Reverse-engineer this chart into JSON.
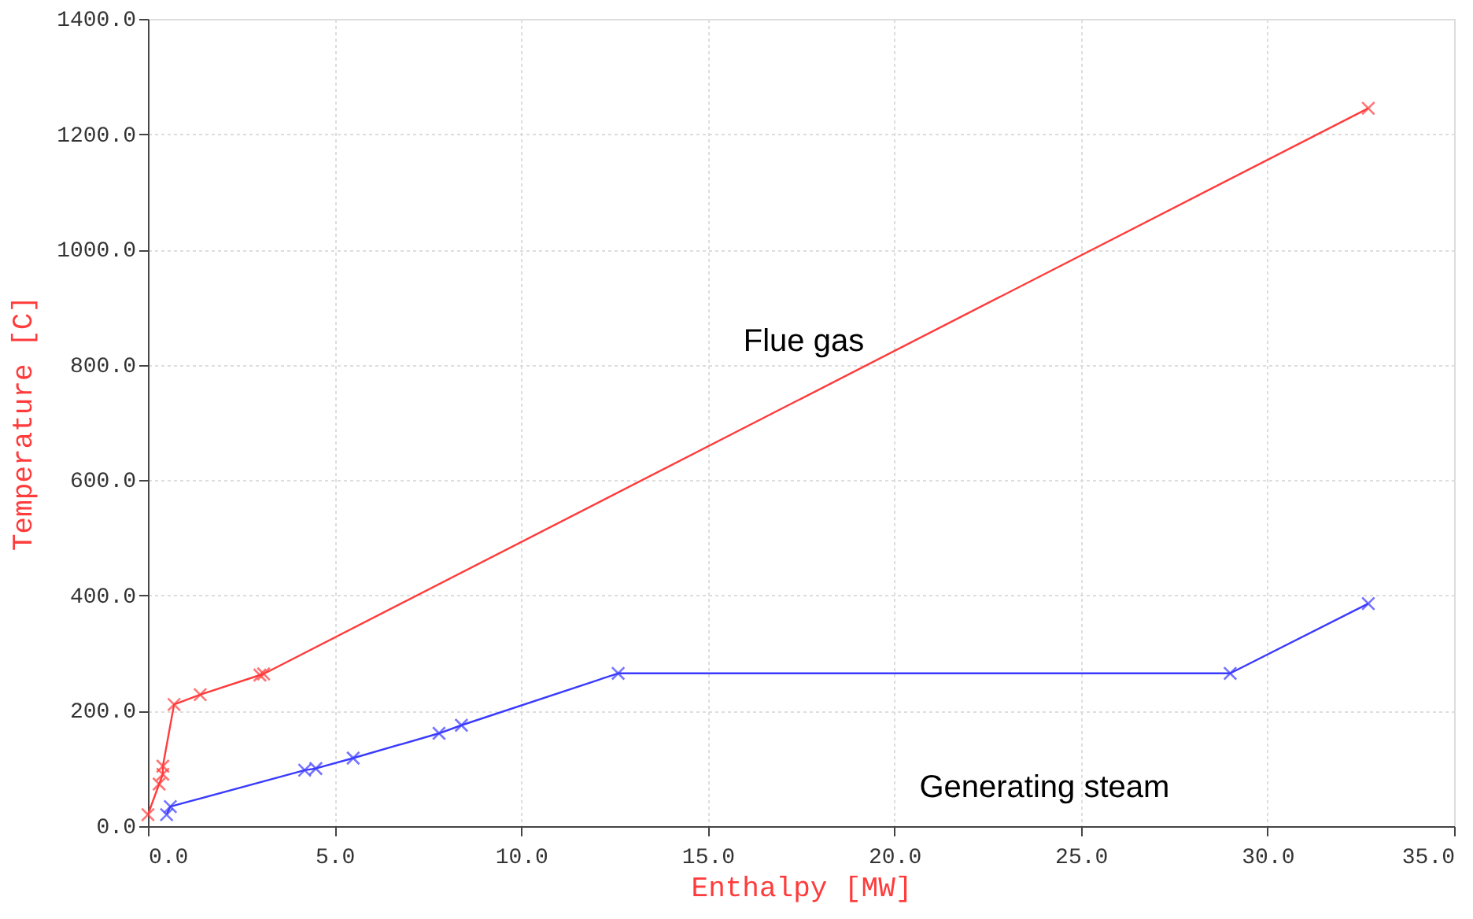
{
  "chart_data": {
    "type": "line",
    "xlabel": "Enthalpy [MW]",
    "ylabel": "Temperature [C]",
    "series": [
      {
        "color": "#ff3b3b",
        "x": [
          0.0,
          0.3,
          0.4,
          0.4,
          0.7,
          1.4,
          3.0,
          3.1,
          32.7
        ],
        "values": [
          20,
          73,
          90,
          104,
          211,
          228,
          262,
          264,
          1245
        ]
      },
      {
        "color": "#3a3aff",
        "x": [
          0.5,
          0.6,
          4.2,
          4.5,
          5.5,
          7.8,
          8.4,
          12.6,
          29.0,
          32.7
        ],
        "values": [
          20,
          34,
          97,
          100,
          118,
          161,
          175,
          265,
          265,
          386
        ]
      }
    ],
    "xlim": [
      0,
      35
    ],
    "ylim": [
      0,
      1400
    ],
    "xticks": [
      {
        "value": 0,
        "label": "0.0"
      },
      {
        "value": 5,
        "label": "5.0"
      },
      {
        "value": 10,
        "label": "10.0"
      },
      {
        "value": 15,
        "label": "15.0"
      },
      {
        "value": 20,
        "label": "20.0"
      },
      {
        "value": 25,
        "label": "25.0"
      },
      {
        "value": 30,
        "label": "30.0"
      },
      {
        "value": 35,
        "label": "35.0"
      }
    ],
    "yticks": [
      {
        "value": 0,
        "label": "0.0"
      },
      {
        "value": 200,
        "label": "200.0"
      },
      {
        "value": 400,
        "label": "400.0"
      },
      {
        "value": 600,
        "label": "600.0"
      },
      {
        "value": 800,
        "label": "800.0"
      },
      {
        "value": 1000,
        "label": "1000.0"
      },
      {
        "value": 1200,
        "label": "1200.0"
      },
      {
        "value": 1400,
        "label": "1400.0"
      }
    ],
    "annotations": [
      "Flue gas",
      "Generating steam"
    ],
    "grid": true,
    "marker": "cross",
    "line_style": "solid"
  }
}
